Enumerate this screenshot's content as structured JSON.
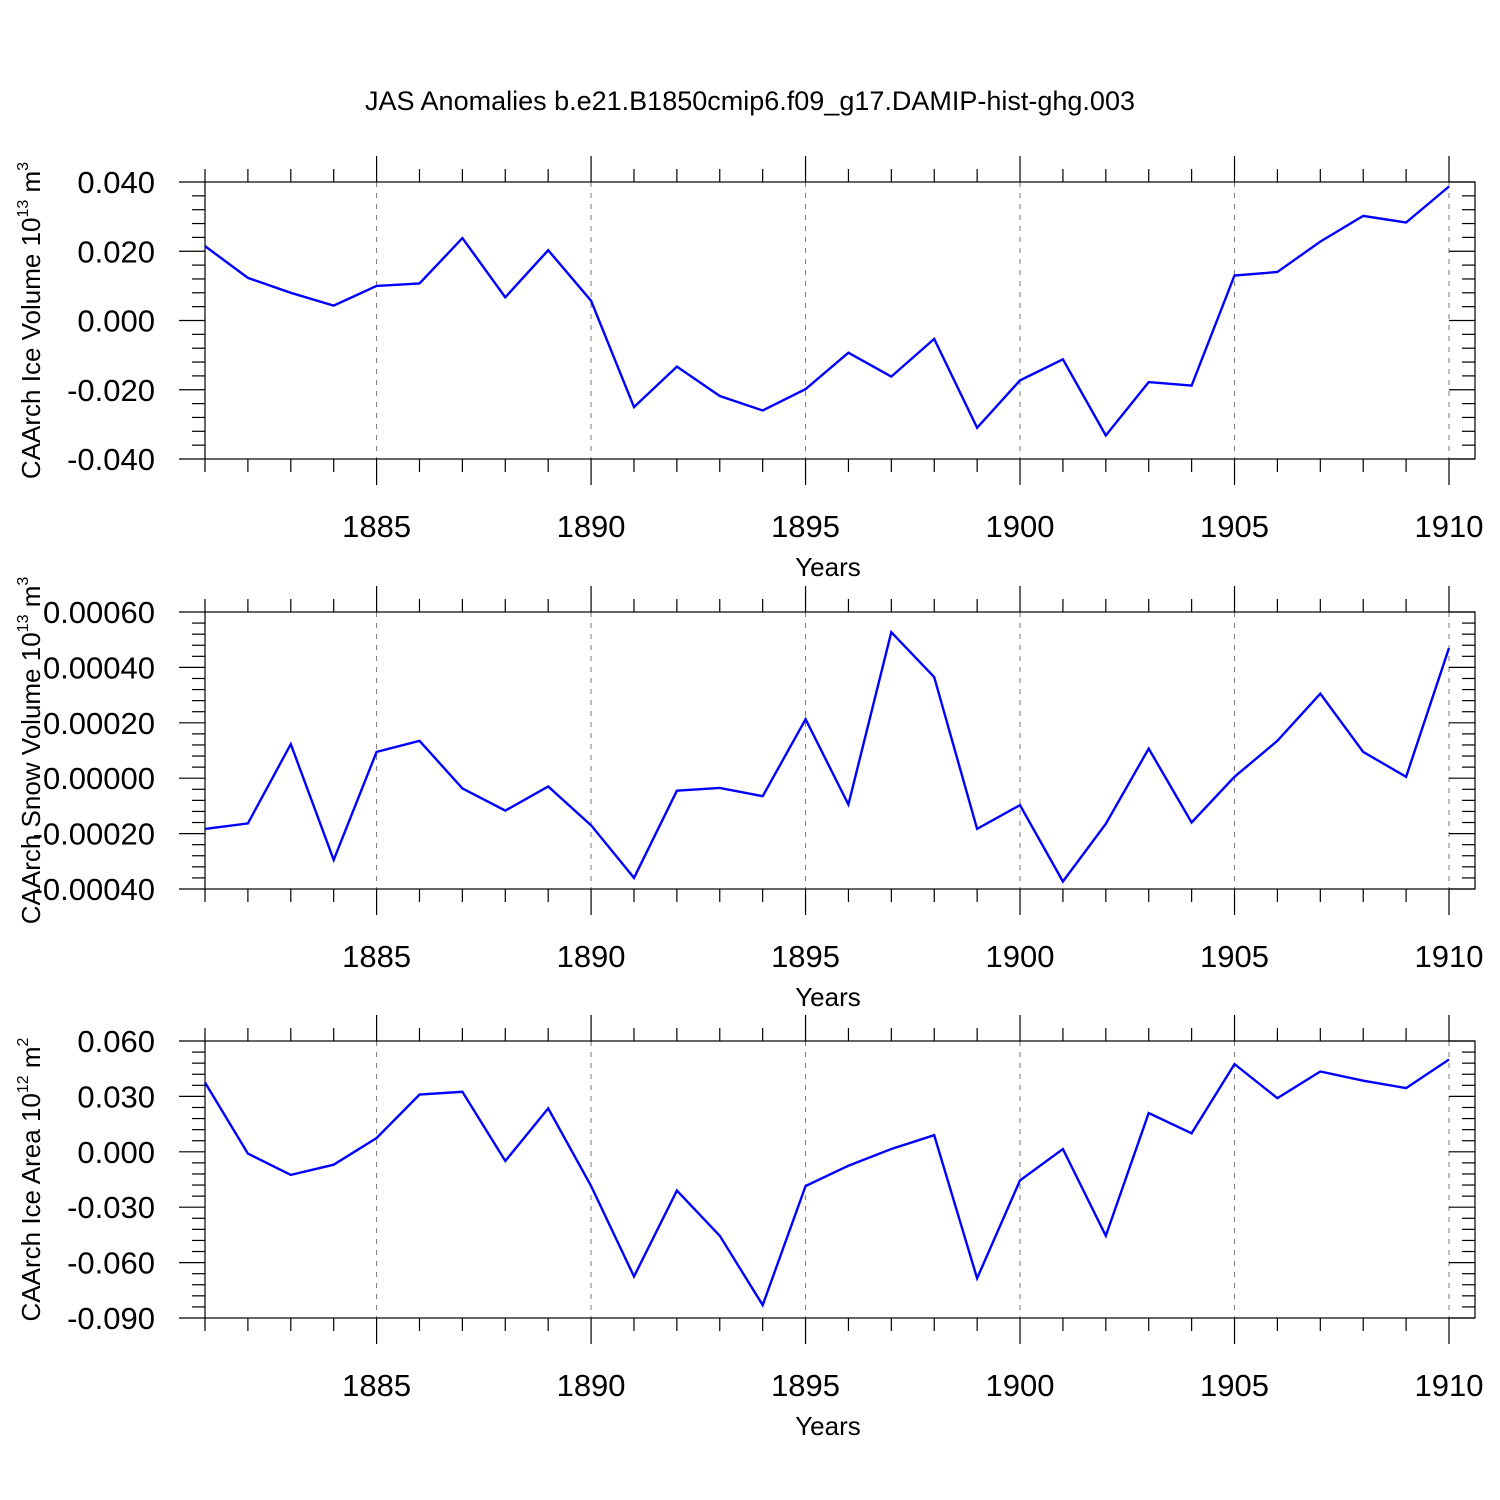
{
  "title": "JAS Anomalies b.e21.B1850cmip6.f09_g17.DAMIP-hist-ghg.003",
  "chart_data": [
    {
      "type": "line",
      "ylabel": "CAArch Ice Volume 10",
      "ylabel_exp": "13",
      "ylabel_unit": " m",
      "ylabel_unit_exp": "3",
      "xlabel": "Years",
      "xlim": [
        1881,
        1910
      ],
      "ylim": [
        -0.04,
        0.04
      ],
      "yticks": [
        -0.04,
        -0.02,
        0.0,
        0.02,
        0.04
      ],
      "ytick_labels": [
        "-0.040",
        "-0.020",
        "0.000",
        "0.020",
        "0.040"
      ],
      "xticks": [
        1885,
        1890,
        1895,
        1900,
        1905,
        1910
      ],
      "xtick_labels": [
        "1885",
        "1890",
        "1895",
        "1900",
        "1905",
        "1910"
      ],
      "color": "#0000ff",
      "x": [
        1881,
        1882,
        1883,
        1884,
        1885,
        1886,
        1887,
        1888,
        1889,
        1890,
        1891,
        1892,
        1893,
        1894,
        1895,
        1896,
        1897,
        1898,
        1899,
        1900,
        1901,
        1902,
        1903,
        1904,
        1905,
        1906,
        1907,
        1908,
        1909,
        1910
      ],
      "y": [
        0.0215,
        0.0123,
        0.008,
        0.0043,
        0.01,
        0.0107,
        0.0238,
        0.0067,
        0.0203,
        0.0057,
        -0.025,
        -0.0133,
        -0.0218,
        -0.026,
        -0.0198,
        -0.0093,
        -0.0162,
        -0.0053,
        -0.031,
        -0.0173,
        -0.0112,
        -0.0332,
        -0.0178,
        -0.0188,
        0.013,
        0.014,
        0.0228,
        0.0302,
        0.0283,
        0.0387
      ]
    },
    {
      "type": "line",
      "ylabel": "CAArch Snow Volume 10",
      "ylabel_exp": "13",
      "ylabel_unit": " m",
      "ylabel_unit_exp": "3",
      "xlabel": "Years",
      "xlim": [
        1881,
        1910
      ],
      "ylim": [
        -0.0004,
        0.0006
      ],
      "yticks": [
        -0.0004,
        -0.0002,
        0.0,
        0.0002,
        0.0004,
        0.0006
      ],
      "ytick_labels": [
        "-0.00040",
        "-0.00020",
        "0.00000",
        "0.00020",
        "0.00040",
        "0.00060"
      ],
      "xticks": [
        1885,
        1890,
        1895,
        1900,
        1905,
        1910
      ],
      "xtick_labels": [
        "1885",
        "1890",
        "1895",
        "1900",
        "1905",
        "1910"
      ],
      "color": "#0000ff",
      "x": [
        1881,
        1882,
        1883,
        1884,
        1885,
        1886,
        1887,
        1888,
        1889,
        1890,
        1891,
        1892,
        1893,
        1894,
        1895,
        1896,
        1897,
        1898,
        1899,
        1900,
        1901,
        1902,
        1903,
        1904,
        1905,
        1906,
        1907,
        1908,
        1909,
        1910
      ],
      "y": [
        -0.000183,
        -0.000163,
        0.000123,
        -0.000295,
        9.5e-05,
        0.000135,
        -3.7e-05,
        -0.000117,
        -3e-05,
        -0.00017,
        -0.00036,
        -4.5e-05,
        -3.5e-05,
        -6.5e-05,
        0.000213,
        -9.5e-05,
        0.000527,
        0.000365,
        -0.000183,
        -9.7e-05,
        -0.000373,
        -0.000165,
        0.000107,
        -0.00016,
        5e-06,
        0.000135,
        0.000305,
        9.5e-05,
        5e-06,
        0.00047
      ]
    },
    {
      "type": "line",
      "ylabel": "CAArch Ice Area 10",
      "ylabel_exp": "12",
      "ylabel_unit": " m",
      "ylabel_unit_exp": "2",
      "xlabel": "Years",
      "xlim": [
        1881,
        1910
      ],
      "ylim": [
        -0.09,
        0.06
      ],
      "yticks": [
        -0.09,
        -0.06,
        -0.03,
        0.0,
        0.03,
        0.06
      ],
      "ytick_labels": [
        "-0.090",
        "-0.060",
        "-0.030",
        "0.000",
        "0.030",
        "0.060"
      ],
      "xticks": [
        1885,
        1890,
        1895,
        1900,
        1905,
        1910
      ],
      "xtick_labels": [
        "1885",
        "1890",
        "1895",
        "1900",
        "1905",
        "1910"
      ],
      "color": "#0000ff",
      "x": [
        1881,
        1882,
        1883,
        1884,
        1885,
        1886,
        1887,
        1888,
        1889,
        1890,
        1891,
        1892,
        1893,
        1894,
        1895,
        1896,
        1897,
        1898,
        1899,
        1900,
        1901,
        1902,
        1903,
        1904,
        1905,
        1906,
        1907,
        1908,
        1909,
        1910
      ],
      "y": [
        0.0375,
        -0.001,
        -0.0125,
        -0.007,
        0.0075,
        0.031,
        0.0325,
        -0.005,
        0.0235,
        -0.0185,
        -0.0675,
        -0.021,
        -0.0455,
        -0.083,
        -0.0185,
        -0.0075,
        0.0015,
        0.009,
        -0.0685,
        -0.0155,
        0.0015,
        -0.0455,
        0.021,
        0.01,
        0.0475,
        0.029,
        0.0435,
        0.0385,
        0.0345,
        0.05
      ]
    }
  ]
}
